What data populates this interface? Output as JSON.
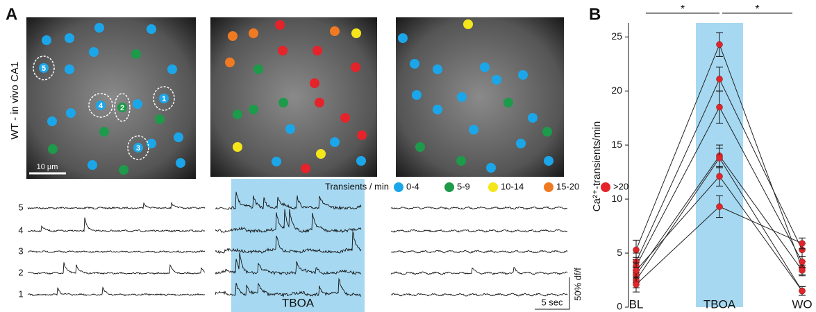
{
  "panel_a": {
    "label": "A",
    "side_label": "WT - in vivo CA1",
    "scale_bar": "10 µm",
    "cell_labels": [
      "5",
      "4",
      "2",
      "1",
      "3"
    ],
    "legend": {
      "title": "Transients / min",
      "items": [
        {
          "label": "0-4",
          "color": "#1ba6ea"
        },
        {
          "label": "5-9",
          "color": "#1d9a4a"
        },
        {
          "label": "10-14",
          "color": "#f4e61a"
        },
        {
          "label": "15-20",
          "color": "#f07a22"
        },
        {
          "label": ">20",
          "color": "#e5232a"
        }
      ]
    },
    "trace_labels": [
      "5",
      "4",
      "3",
      "2",
      "1"
    ],
    "treatment": "TBOA",
    "time_scale": "5 sec",
    "amplitude_scale": "50% df/f"
  },
  "chart_data": {
    "type": "line",
    "panel_label": "B",
    "y_label": "Ca²⁺-transients/min",
    "categories": [
      "BL",
      "TBOA",
      "WO"
    ],
    "highlight": "TBOA",
    "band_color": "#a6d8f1",
    "significance": [
      {
        "from": "BL",
        "to": "TBOA",
        "label": "*"
      },
      {
        "from": "TBOA",
        "to": "WO",
        "label": "*"
      }
    ],
    "ylim": [
      0,
      26.3
    ],
    "yticks": [
      0,
      5,
      10,
      15,
      20,
      25
    ],
    "line_color": "#222222",
    "marker_color": "#e0262a",
    "series": [
      {
        "values": [
          5.3,
          24.3,
          3.6
        ],
        "errors": [
          0.9,
          1.1,
          0.6
        ]
      },
      {
        "values": [
          4.2,
          21.1,
          5.3
        ],
        "errors": [
          0.8,
          1.1,
          0.6
        ]
      },
      {
        "values": [
          3.8,
          18.5,
          4.2
        ],
        "errors": [
          0.8,
          1.5,
          0.5
        ]
      },
      {
        "values": [
          3.0,
          14.0,
          3.4
        ],
        "errors": [
          0.7,
          1.0,
          0.5
        ]
      },
      {
        "values": [
          2.5,
          13.8,
          1.5
        ],
        "errors": [
          0.7,
          0.9,
          0.4
        ]
      },
      {
        "values": [
          3.4,
          12.1,
          1.5
        ],
        "errors": [
          0.7,
          0.9,
          0.4
        ]
      },
      {
        "values": [
          2.1,
          9.3,
          5.9
        ],
        "errors": [
          0.7,
          1.0,
          0.5
        ]
      }
    ]
  }
}
